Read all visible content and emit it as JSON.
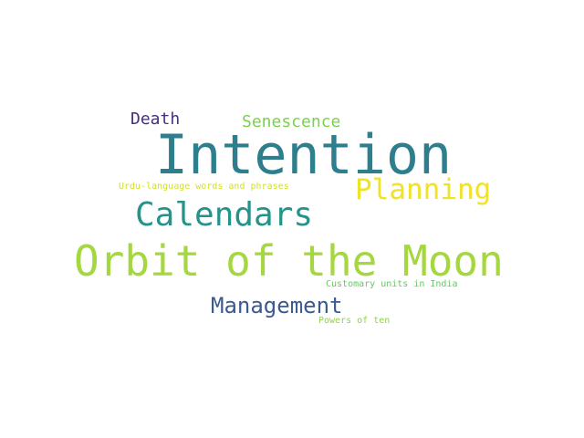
{
  "words": [
    {
      "id": "intention",
      "text": "Intention",
      "color": "#2e7f8e"
    },
    {
      "id": "orbit",
      "text": "Orbit of the Moon",
      "color": "#a5d740"
    },
    {
      "id": "calendars",
      "text": "Calendars",
      "color": "#24938a"
    },
    {
      "id": "planning",
      "text": "Planning",
      "color": "#f0e227"
    },
    {
      "id": "management",
      "text": "Management",
      "color": "#3c5a8d"
    },
    {
      "id": "senescence",
      "text": "Senescence",
      "color": "#7ad151"
    },
    {
      "id": "death",
      "text": "Death",
      "color": "#472f7d"
    },
    {
      "id": "urdu",
      "text": "Urdu-language words and phrases",
      "color": "#d4e02a"
    },
    {
      "id": "customary",
      "text": "Customary units in India",
      "color": "#63c963"
    },
    {
      "id": "powers",
      "text": "Powers of ten",
      "color": "#8fd24a"
    }
  ]
}
